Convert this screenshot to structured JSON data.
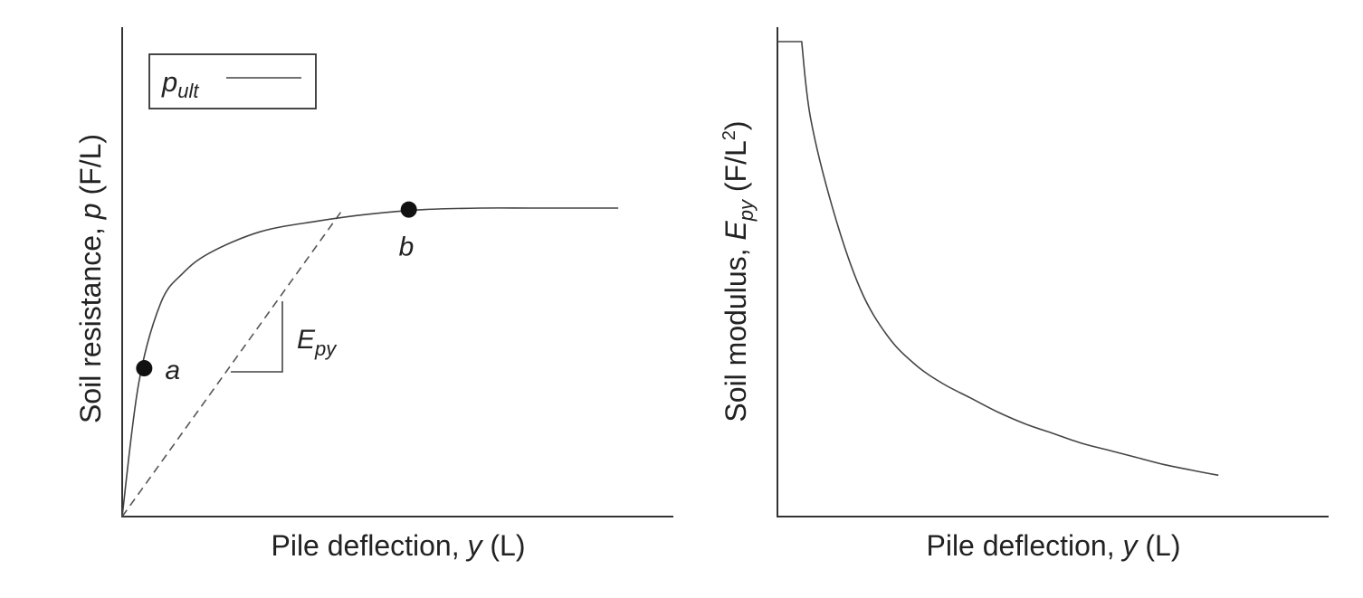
{
  "chart_data": [
    {
      "type": "line",
      "xlabel": {
        "text": "Pile deflection, ",
        "var": "y",
        "unit": " (L)"
      },
      "ylabel": {
        "text": "Soil resistance, ",
        "var": "p",
        "unit": " (F/L)"
      },
      "legend": {
        "label": "p",
        "sub": "ult",
        "position": "top-left"
      },
      "grid": false,
      "series": [
        {
          "values": [
            [
              0,
              0
            ],
            [
              3,
              45
            ],
            [
              7,
              72
            ],
            [
              11,
              82
            ],
            [
              16,
              89
            ],
            [
              25,
              96
            ],
            [
              35,
              99.5
            ],
            [
              45,
              102
            ],
            [
              55,
              103.5
            ],
            [
              65,
              104
            ],
            [
              75,
              104
            ],
            [
              90,
              104
            ]
          ]
        },
        {
          "values": [
            [
              0,
              0
            ],
            [
              40,
              103.5
            ]
          ]
        }
      ],
      "points": [
        {
          "label": "a",
          "x": 4,
          "y": 50
        },
        {
          "label": "b",
          "x": 52,
          "y": 103.5
        }
      ],
      "annotation": {
        "label": "E",
        "sub": "py"
      },
      "xlim": [
        0,
        100
      ],
      "ylim": [
        0,
        165
      ]
    },
    {
      "type": "line",
      "xlabel": {
        "text": "Pile deflection, ",
        "var": "y",
        "unit": " (L)"
      },
      "ylabel": {
        "text": "Soil modulus, ",
        "var": "E",
        "sub": "py",
        "unit": " (F/L",
        "sup": "2",
        "close": ")"
      },
      "grid": false,
      "series": [
        {
          "values": [
            [
              0,
              100
            ],
            [
              4.4,
              100
            ],
            [
              6,
              84
            ],
            [
              10,
              65
            ],
            [
              15,
              48
            ],
            [
              20,
              38
            ],
            [
              25,
              32
            ],
            [
              30,
              28
            ],
            [
              35,
              25
            ],
            [
              40,
              22
            ],
            [
              45,
              19.5
            ],
            [
              50,
              17.5
            ],
            [
              55,
              15.5
            ],
            [
              60,
              14
            ],
            [
              65,
              12.5
            ],
            [
              70,
              11
            ],
            [
              75,
              9.8
            ],
            [
              80,
              8.7
            ]
          ]
        }
      ],
      "xlim": [
        0,
        100
      ],
      "ylim": [
        0,
        100
      ]
    }
  ]
}
